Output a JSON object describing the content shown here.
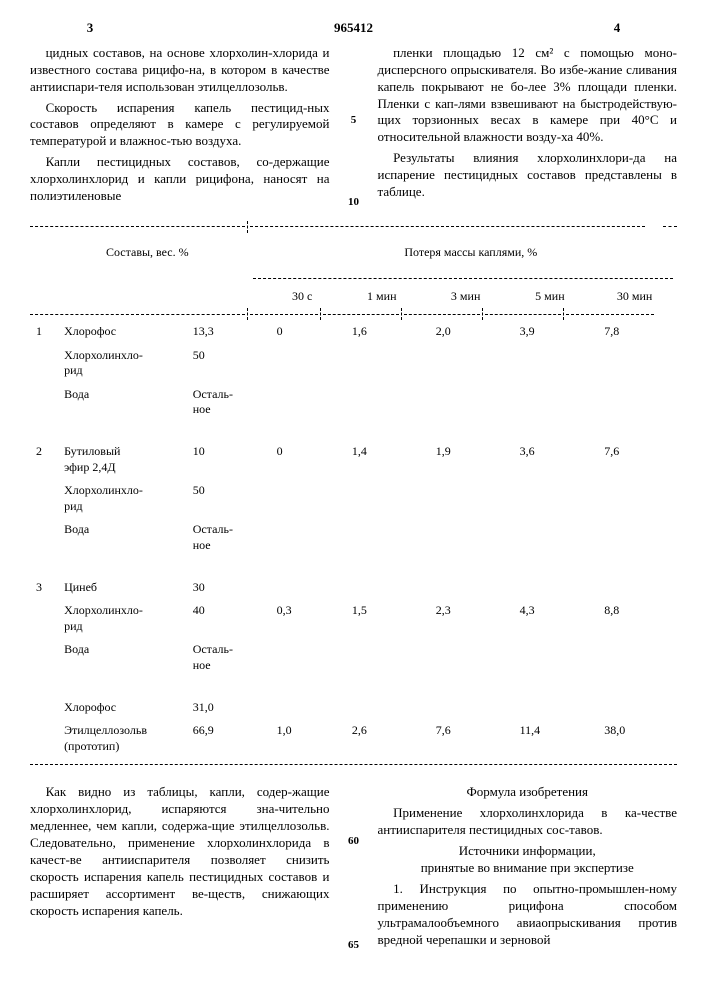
{
  "header": {
    "pageLeft": "3",
    "patent": "965412",
    "pageRight": "4"
  },
  "topText": {
    "left": {
      "p1": "цидных составов, на основе хлорхолин-хлорида и известного состава рицифо-на, в котором в качестве антииспари-теля использован этилцеллозольв.",
      "p2": "Скорость испарения капель пестицид-ных составов определяют в камере с регулируемой температурой и влажнос-тью воздуха.",
      "p3": "Капли пестицидных составов, со-держащие хлорхолинхлорид и капли рицифона, наносят на полиэтиленовые"
    },
    "right": {
      "p1": "пленки площадью 12 см² с помощью моно-дисперсного опрыскивателя. Во избе-жание сливания капель покрывают не бо-лее 3% площади пленки. Пленки с кап-лями взвешивают на быстродействую-щих торзионных весах в камере при 40°С и относительной влажности возду-ха 40%.",
      "p2": "Результаты влияния хлорхолинхлори-да на испарение пестицидных составов представлены в таблице."
    },
    "markers": {
      "m5": "5",
      "m10": "10"
    }
  },
  "table": {
    "headerLeft": "Составы, вес. %",
    "headerRight": "Потеря массы каплями, %",
    "timeCols": [
      "30 с",
      "1 мин",
      "3 мин",
      "5 мин",
      "30 мин"
    ],
    "groups": [
      {
        "idx": "1",
        "rows": [
          {
            "name": "Хлорофос",
            "val": "13,3",
            "data": [
              "0",
              "1,6",
              "2,0",
              "3,9",
              "7,8"
            ]
          },
          {
            "name": "Хлорхолинхло-\nрид",
            "val": "50"
          },
          {
            "name": "Вода",
            "val": "Осталь-\nное"
          }
        ]
      },
      {
        "idx": "2",
        "rows": [
          {
            "name": "Бутиловый\nэфир 2,4Д",
            "val": "10",
            "data": [
              "0",
              "1,4",
              "1,9",
              "3,6",
              "7,6"
            ]
          },
          {
            "name": "Хлорхолинхло-\nрид",
            "val": "50"
          },
          {
            "name": "Вода",
            "val": "Осталь-\nное"
          }
        ]
      },
      {
        "idx": "3",
        "rows": [
          {
            "name": "Цинеб",
            "val": "30"
          },
          {
            "name": "Хлорхолинхло-\nрид",
            "val": "40",
            "data": [
              "0,3",
              "1,5",
              "2,3",
              "4,3",
              "8,8"
            ]
          },
          {
            "name": "Вода",
            "val": "Осталь-\nное"
          }
        ]
      },
      {
        "idx": "",
        "rows": [
          {
            "name": "Хлорофос",
            "val": "31,0"
          },
          {
            "name": "Этилцеллозольв\n(прототип)",
            "val": "66,9",
            "data": [
              "1,0",
              "2,6",
              "7,6",
              "11,4",
              "38,0"
            ]
          }
        ]
      }
    ]
  },
  "bottomText": {
    "left": {
      "p1": "Как видно из таблицы, капли, содер-жащие хлорхолинхлорид, испаряются зна-чительно медленнее, чем капли, содержа-щие этилцеллозольв. Следовательно, применение хлорхолинхлорида в качест-ве антииспарителя позволяет снизить скорость испарения капель пестицидных составов и расширяет ассортимент ве-ществ, снижающих скорость испарения капель."
    },
    "right": {
      "h1": "Формула изобретения",
      "p1": "Применение хлорхолинхлорида в ка-честве антииспарителя пестицидных сос-тавов.",
      "h2": "Источники информации,\nпринятые во внимание при экспертизе",
      "p2": "1. Инструкция по опытно-промышлен-ному применению рицифона способом ультрамалообъемного авиаопрыскивания против вредной черепашки и зерновой"
    },
    "markers": {
      "m60": "60",
      "m65": "65"
    }
  }
}
